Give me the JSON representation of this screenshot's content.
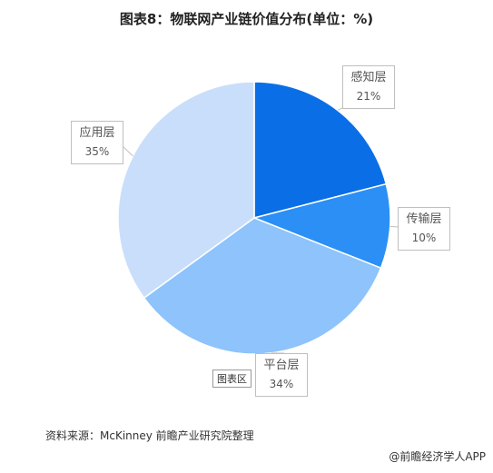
{
  "title": "图表8：物联网产业链价值分布(单位：%)",
  "chart_data": {
    "type": "pie",
    "title": "图表8：物联网产业链价值分布(单位：%)",
    "unit": "%",
    "slices": [
      {
        "label": "感知层",
        "value": 21,
        "display": "21%",
        "color": "#0a6fe6"
      },
      {
        "label": "传输层",
        "value": 10,
        "display": "10%",
        "color": "#2b8ff5"
      },
      {
        "label": "平台层",
        "value": 34,
        "display": "34%",
        "color": "#8ec3fb"
      },
      {
        "label": "应用层",
        "value": 35,
        "display": "35%",
        "color": "#c9defa"
      }
    ]
  },
  "chip_label": "图表区",
  "source": "资料来源：McKinney 前瞻产业研究院整理",
  "footer": "@前瞻经济学人APP"
}
